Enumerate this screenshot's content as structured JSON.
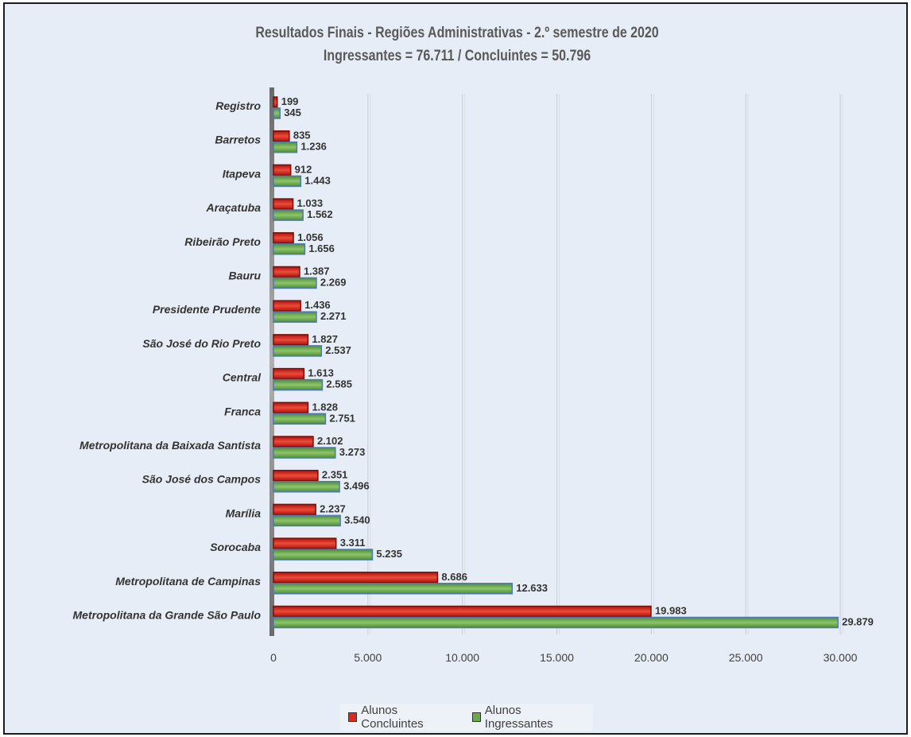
{
  "chart_data": {
    "type": "bar",
    "orientation": "horizontal",
    "title": "Resultados Finais - Regiões Administrativas - 2.º semestre de 2020",
    "subtitle": "Ingressantes = 76.711 / Concluintes = 50.796",
    "categories": [
      "Registro",
      "Barretos",
      "Itapeva",
      "Araçatuba",
      "Ribeirão Preto",
      "Bauru",
      "Presidente Prudente",
      "São José do Rio Preto",
      "Central",
      "Franca",
      "Metropolitana da Baixada Santista",
      "São José dos Campos",
      "Marília",
      "Sorocaba",
      "Metropolitana de Campinas",
      "Metropolitana da Grande São Paulo"
    ],
    "series": [
      {
        "name": "Alunos Concluintes",
        "color": "#e0291c",
        "values": [
          199,
          835,
          912,
          1033,
          1056,
          1387,
          1436,
          1827,
          1613,
          1828,
          2102,
          2351,
          2237,
          3311,
          8686,
          19983
        ],
        "labels": [
          "199",
          "835",
          "912",
          "1.033",
          "1.056",
          "1.387",
          "1.436",
          "1.827",
          "1.613",
          "1.828",
          "2.102",
          "2.351",
          "2.237",
          "3.311",
          "8.686",
          "19.983"
        ]
      },
      {
        "name": "Alunos Ingressantes",
        "color": "#6aaa4b",
        "values": [
          345,
          1236,
          1443,
          1562,
          1656,
          2269,
          2271,
          2537,
          2585,
          2751,
          3273,
          3496,
          3540,
          5235,
          12633,
          29879
        ],
        "labels": [
          "345",
          "1.236",
          "1.443",
          "1.562",
          "1.656",
          "2.269",
          "2.271",
          "2.537",
          "2.585",
          "2.751",
          "3.273",
          "3.496",
          "3.540",
          "5.235",
          "12.633",
          "29.879"
        ]
      }
    ],
    "xlim": [
      0,
      30000
    ],
    "x_ticks": [
      0,
      5000,
      10000,
      15000,
      20000,
      25000,
      30000
    ],
    "x_tick_labels": [
      "0",
      "5.000",
      "10.000",
      "15.000",
      "20.000",
      "25.000",
      "30.000"
    ],
    "grid": "vertical",
    "legend_position": "bottom"
  }
}
